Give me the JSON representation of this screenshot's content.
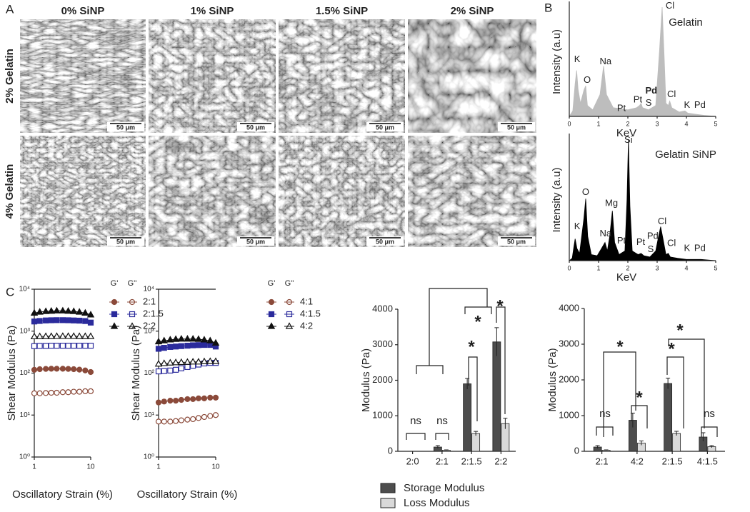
{
  "panel_labels": [
    "A",
    "B",
    "C"
  ],
  "panel_a": {
    "columns": [
      "0% SiNP",
      "1% SiNP",
      "1.5% SiNP",
      "2% SiNP"
    ],
    "rows": [
      "2% Gelatin",
      "4% Gelatin"
    ],
    "scale_bar": "50 μm"
  },
  "chart_data": [
    {
      "type": "area",
      "title": "Gelatin",
      "xlabel": "KeV",
      "ylabel": "Intensity (a.u)",
      "color": "#bdbdbd",
      "xlim": [
        0,
        5
      ],
      "ylim": [
        0,
        100
      ],
      "xticks": [
        0,
        1,
        2,
        3,
        4,
        5
      ],
      "x": [
        0,
        0.12,
        0.2,
        0.25,
        0.3,
        0.38,
        0.5,
        0.56,
        0.62,
        0.8,
        1.05,
        1.17,
        1.27,
        1.5,
        2.0,
        2.3,
        2.4,
        2.45,
        2.5,
        2.7,
        2.95,
        3.08,
        3.17,
        3.24,
        3.3,
        3.38,
        3.43,
        3.5,
        3.75,
        3.95,
        4.05,
        4.3,
        4.6,
        5
      ],
      "values": [
        0,
        5,
        30,
        42,
        25,
        12,
        24,
        28,
        10,
        6,
        20,
        46,
        20,
        8,
        6,
        8,
        10,
        12,
        8,
        6,
        10,
        60,
        100,
        55,
        12,
        10,
        14,
        8,
        4,
        5,
        3,
        2,
        1,
        0
      ],
      "annotations": [
        {
          "text": "K",
          "x": 0.27,
          "y": 52
        },
        {
          "text": "O",
          "x": 0.61,
          "y": 33
        },
        {
          "text": "Na",
          "x": 1.24,
          "y": 50
        },
        {
          "text": "Pt",
          "x": 1.78,
          "y": 7
        },
        {
          "text": "Pt",
          "x": 2.34,
          "y": 15
        },
        {
          "text": "S",
          "x": 2.71,
          "y": 12
        },
        {
          "text": "Pd",
          "x": 2.8,
          "y": 23,
          "weight": "bold"
        },
        {
          "text": "Cl",
          "x": 3.44,
          "y": 101
        },
        {
          "text": "Cl",
          "x": 3.49,
          "y": 20
        },
        {
          "text": "K",
          "x": 4.02,
          "y": 10
        },
        {
          "text": "Pd",
          "x": 4.46,
          "y": 10
        }
      ]
    },
    {
      "type": "area",
      "title": "Gelatin SiNP",
      "xlabel": "KeV",
      "ylabel": "Intensity (a.u)",
      "color": "#000000",
      "xlim": [
        0,
        5
      ],
      "ylim": [
        0,
        100
      ],
      "xticks": [
        0,
        1,
        2,
        3,
        4,
        5
      ],
      "x": [
        0,
        0.1,
        0.16,
        0.2,
        0.26,
        0.35,
        0.5,
        0.56,
        0.63,
        0.75,
        0.95,
        1.1,
        1.22,
        1.3,
        1.38,
        1.47,
        1.55,
        1.7,
        1.9,
        1.97,
        2.02,
        2.07,
        2.15,
        2.35,
        2.45,
        2.55,
        2.75,
        2.95,
        3.05,
        3.12,
        3.2,
        3.3,
        3.38,
        3.45,
        3.7,
        4.0,
        4.5,
        5
      ],
      "values": [
        0,
        2,
        12,
        18,
        10,
        6,
        35,
        51,
        20,
        5,
        4,
        10,
        15,
        8,
        20,
        41,
        15,
        5,
        8,
        50,
        100,
        45,
        8,
        5,
        6,
        4,
        3,
        8,
        20,
        28,
        18,
        5,
        6,
        3,
        2,
        1,
        1,
        0
      ],
      "annotations": [
        {
          "text": "Si",
          "x": 2.02,
          "y": 99,
          "color": "#c0282d"
        },
        {
          "text": "K",
          "x": 0.27,
          "y": 28
        },
        {
          "text": "O",
          "x": 0.56,
          "y": 56
        },
        {
          "text": "Mg",
          "x": 1.44,
          "y": 47,
          "color": "#c0282d"
        },
        {
          "text": "Na",
          "x": 1.24,
          "y": 22
        },
        {
          "text": "Pt",
          "x": 1.78,
          "y": 16
        },
        {
          "text": "Pt",
          "x": 2.44,
          "y": 15
        },
        {
          "text": "S",
          "x": 2.78,
          "y": 9
        },
        {
          "text": "Pd",
          "x": 2.85,
          "y": 20
        },
        {
          "text": "Cl",
          "x": 3.17,
          "y": 32
        },
        {
          "text": "Cl",
          "x": 3.49,
          "y": 14
        },
        {
          "text": "K",
          "x": 4.02,
          "y": 10
        },
        {
          "text": "Pd",
          "x": 4.46,
          "y": 10
        }
      ]
    },
    {
      "type": "line",
      "xlabel": "Oscillatory Strain (%)",
      "ylabel": "Shear Modulus (Pa)",
      "xscale": "log",
      "yscale": "log",
      "xlim": [
        1,
        10
      ],
      "ylim": [
        1,
        10000
      ],
      "xticks": [
        1,
        10
      ],
      "yticks": [
        {
          "value": 1,
          "label": "10⁰"
        },
        {
          "value": 10,
          "label": "10¹"
        },
        {
          "value": 100,
          "label": "10²"
        },
        {
          "value": 1000,
          "label": "10³"
        },
        {
          "value": 10000,
          "label": "10⁴"
        }
      ],
      "legend_headers": [
        "G'",
        "G''"
      ],
      "x": [
        1,
        1.25,
        1.6,
        2,
        2.5,
        3.2,
        4,
        5,
        6.3,
        8,
        10
      ],
      "series": [
        {
          "name": "2:1",
          "color": "#8b4a3a",
          "marker": "circle",
          "values": [
            120,
            124,
            126,
            127,
            127,
            127,
            126,
            124,
            121,
            116,
            106
          ],
          "loss_values": [
            33,
            33,
            33.5,
            34,
            34,
            35,
            35,
            36,
            36,
            37,
            37
          ]
        },
        {
          "name": "2:1.5",
          "color": "#2b2b9c",
          "marker": "square",
          "values": [
            1700,
            1750,
            1800,
            1820,
            1830,
            1830,
            1820,
            1800,
            1780,
            1740,
            1600
          ],
          "loss_values": [
            440,
            445,
            445,
            450,
            450,
            450,
            450,
            450,
            450,
            450,
            450
          ]
        },
        {
          "name": "2:2",
          "color": "#111111",
          "marker": "triangle",
          "values": [
            2700,
            2850,
            2950,
            3000,
            3050,
            3050,
            3000,
            2950,
            2850,
            2700,
            2450
          ],
          "loss_values": [
            740,
            745,
            750,
            750,
            755,
            755,
            755,
            755,
            750,
            750,
            750
          ]
        }
      ]
    },
    {
      "type": "line",
      "xlabel": "Oscillatory Strain (%)",
      "ylabel": "Shear Modulus (Pa)",
      "xscale": "log",
      "yscale": "log",
      "xlim": [
        1,
        10
      ],
      "ylim": [
        1,
        10000
      ],
      "xticks": [
        1,
        10
      ],
      "yticks": [
        {
          "value": 1,
          "label": "10⁰"
        },
        {
          "value": 10,
          "label": "10¹"
        },
        {
          "value": 100,
          "label": "10²"
        },
        {
          "value": 1000,
          "label": "10³"
        },
        {
          "value": 10000,
          "label": "10⁴"
        }
      ],
      "legend_headers": [
        "G'",
        "G''"
      ],
      "x": [
        1,
        1.25,
        1.6,
        2,
        2.5,
        3.2,
        4,
        5,
        6.3,
        8,
        10
      ],
      "series": [
        {
          "name": "4:1",
          "color": "#8b4a3a",
          "marker": "circle",
          "values": [
            20,
            21,
            22,
            22,
            23,
            24,
            24,
            25,
            25,
            26,
            26
          ],
          "loss_values": [
            7,
            7,
            7,
            7.2,
            7.5,
            7.8,
            8,
            8.5,
            9,
            9.5,
            10
          ]
        },
        {
          "name": "4:1.5",
          "color": "#2b2b9c",
          "marker": "square",
          "values": [
            380,
            400,
            420,
            430,
            440,
            450,
            460,
            465,
            470,
            470,
            430
          ],
          "loss_values": [
            110,
            112,
            115,
            120,
            130,
            140,
            150,
            160,
            170,
            175,
            175
          ]
        },
        {
          "name": "4:2",
          "color": "#111111",
          "marker": "triangle",
          "values": [
            560,
            590,
            620,
            640,
            650,
            650,
            650,
            640,
            620,
            590,
            520
          ],
          "loss_values": [
            165,
            170,
            175,
            178,
            180,
            182,
            185,
            185,
            188,
            190,
            190
          ]
        }
      ]
    },
    {
      "type": "bar",
      "ylabel": "Modulus (Pa)",
      "ylim": [
        0,
        4000
      ],
      "yticks": [
        0,
        1000,
        2000,
        3000,
        4000
      ],
      "categories": [
        "2:0",
        "2:1",
        "2:1.5",
        "2:2"
      ],
      "series": [
        {
          "name": "Storage Modulus",
          "color": "#4d4d4d",
          "values": [
            null,
            120,
            1900,
            3080
          ],
          "errors": [
            null,
            40,
            150,
            400
          ]
        },
        {
          "name": "Loss Modulus",
          "color": "#d9d9d9",
          "values": [
            null,
            30,
            500,
            780
          ],
          "errors": [
            null,
            10,
            60,
            150
          ]
        }
      ],
      "annotations": [
        "ns",
        "ns",
        "*",
        "*",
        "*"
      ]
    },
    {
      "type": "bar",
      "ylabel": "Modulus (Pa)",
      "ylim": [
        0,
        4000
      ],
      "yticks": [
        0,
        1000,
        2000,
        3000,
        4000
      ],
      "categories": [
        "2:1",
        "4:2",
        "2:1.5",
        "4:1.5"
      ],
      "series": [
        {
          "color": "#4d4d4d",
          "values": [
            120,
            870,
            1900,
            400
          ],
          "errors": [
            40,
            200,
            150,
            120
          ]
        },
        {
          "color": "#d9d9d9",
          "values": [
            30,
            230,
            500,
            130
          ],
          "errors": [
            10,
            60,
            60,
            30
          ]
        }
      ],
      "annotations": [
        "ns",
        "*",
        "*",
        "*",
        "*",
        "ns"
      ]
    }
  ]
}
